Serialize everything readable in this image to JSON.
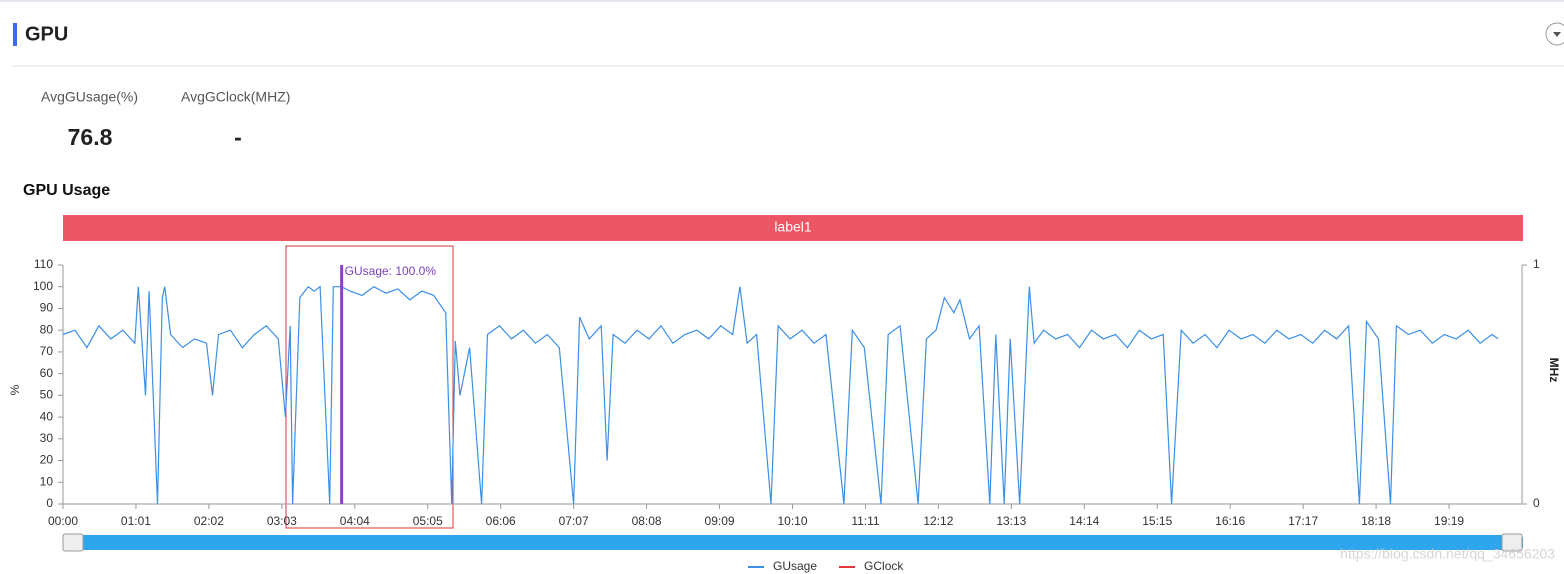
{
  "header": {
    "title": "GPU"
  },
  "stats": [
    {
      "label": "AvgGUsage(%)",
      "value": 76.8
    },
    {
      "label": "AvgGClock(MHZ)",
      "value": "-"
    }
  ],
  "section_title": "GPU Usage",
  "watermark": "https://blog.csdn.net/qq_34656203",
  "chart_data": {
    "type": "line",
    "label_band": "label1",
    "ylabel": "%",
    "y2label": "MHz",
    "annotation": {
      "text": "GUsage: 100.0%",
      "x": 233
    },
    "xlim": [
      0,
      1220
    ],
    "xticks": [
      {
        "value": 0,
        "label": "00:00"
      },
      {
        "value": 61,
        "label": "01:01"
      },
      {
        "value": 122,
        "label": "02:02"
      },
      {
        "value": 183,
        "label": "03:03"
      },
      {
        "value": 244,
        "label": "04:04"
      },
      {
        "value": 305,
        "label": "05:05"
      },
      {
        "value": 366,
        "label": "06:06"
      },
      {
        "value": 427,
        "label": "07:07"
      },
      {
        "value": 488,
        "label": "08:08"
      },
      {
        "value": 549,
        "label": "09:09"
      },
      {
        "value": 610,
        "label": "10:10"
      },
      {
        "value": 671,
        "label": "11:11"
      },
      {
        "value": 732,
        "label": "12:12"
      },
      {
        "value": 793,
        "label": "13:13"
      },
      {
        "value": 854,
        "label": "14:14"
      },
      {
        "value": 915,
        "label": "15:15"
      },
      {
        "value": 976,
        "label": "16:16"
      },
      {
        "value": 1037,
        "label": "17:17"
      },
      {
        "value": 1098,
        "label": "18:18"
      },
      {
        "value": 1159,
        "label": "19:19"
      }
    ],
    "ylim": [
      0,
      110
    ],
    "yticks": [
      0,
      10,
      20,
      30,
      40,
      50,
      60,
      70,
      80,
      90,
      100,
      110
    ],
    "y2lim": [
      0,
      1
    ],
    "y2ticks": [
      0,
      1
    ],
    "x": [
      0,
      10,
      20,
      30,
      40,
      50,
      60,
      63,
      69,
      72,
      79,
      83,
      85,
      90,
      100,
      110,
      120,
      125,
      130,
      140,
      150,
      160,
      170,
      180,
      186,
      190,
      192,
      198,
      205,
      210,
      215,
      223,
      226,
      233,
      240,
      250,
      260,
      270,
      280,
      290,
      300,
      310,
      320,
      325,
      328,
      332,
      340,
      350,
      355,
      365,
      375,
      385,
      395,
      405,
      415,
      427,
      432,
      440,
      450,
      455,
      460,
      470,
      480,
      490,
      500,
      510,
      520,
      530,
      540,
      550,
      560,
      566,
      572,
      580,
      592,
      598,
      608,
      618,
      628,
      638,
      653,
      660,
      670,
      684,
      690,
      700,
      715,
      722,
      730,
      737,
      745,
      750,
      758,
      766,
      775,
      780,
      787,
      792,
      800,
      808,
      812,
      820,
      830,
      840,
      850,
      860,
      870,
      880,
      890,
      900,
      910,
      920,
      927,
      935,
      945,
      955,
      965,
      975,
      985,
      995,
      1005,
      1015,
      1025,
      1035,
      1045,
      1055,
      1065,
      1075,
      1084,
      1090,
      1100,
      1110,
      1115,
      1125,
      1135,
      1145,
      1155,
      1165,
      1175,
      1185,
      1195,
      1200
    ],
    "series": [
      {
        "name": "GUsage",
        "color": "#3b8fe8",
        "values": [
          78,
          80,
          72,
          82,
          76,
          80,
          74,
          100,
          50,
          98,
          0,
          95,
          100,
          78,
          72,
          76,
          74,
          50,
          78,
          80,
          72,
          78,
          82,
          76,
          40,
          82,
          0,
          95,
          100,
          98,
          100,
          0,
          100,
          100,
          98,
          96,
          100,
          97,
          99,
          94,
          98,
          96,
          88,
          0,
          75,
          50,
          72,
          0,
          78,
          82,
          76,
          80,
          74,
          78,
          72,
          0,
          86,
          76,
          82,
          20,
          78,
          74,
          80,
          76,
          82,
          74,
          78,
          80,
          76,
          82,
          78,
          100,
          74,
          78,
          0,
          82,
          76,
          80,
          74,
          78,
          0,
          80,
          72,
          0,
          78,
          82,
          0,
          76,
          80,
          95,
          88,
          94,
          76,
          82,
          0,
          78,
          0,
          76,
          0,
          100,
          74,
          80,
          76,
          78,
          72,
          80,
          76,
          78,
          72,
          80,
          76,
          78,
          0,
          80,
          74,
          78,
          72,
          80,
          76,
          78,
          74,
          80,
          76,
          78,
          74,
          80,
          76,
          82,
          0,
          84,
          76,
          0,
          82,
          78,
          80,
          74,
          78,
          76,
          80,
          74,
          78,
          76
        ]
      },
      {
        "name": "GClock",
        "color": "#e0383c",
        "axis": "y2",
        "values": [
          null,
          null,
          null,
          null,
          null,
          null,
          null,
          null,
          null,
          null,
          null,
          null,
          null,
          null,
          null,
          null,
          null,
          null,
          null,
          null,
          null,
          null,
          null,
          null,
          null,
          null,
          null,
          null,
          null,
          null,
          null,
          null,
          null,
          null,
          null,
          null,
          null,
          null,
          null,
          null,
          null,
          null,
          null,
          null,
          null,
          null,
          null,
          null,
          null,
          null,
          null,
          null,
          null,
          null,
          null,
          null,
          null,
          null,
          null,
          null,
          null,
          null,
          null,
          null,
          null,
          null,
          null,
          null,
          null,
          null,
          null,
          null,
          null,
          null,
          null,
          null,
          null,
          null,
          null,
          null,
          null,
          null,
          null,
          null,
          null,
          null,
          null,
          null,
          null,
          null,
          null,
          null,
          null,
          null,
          null,
          null,
          null,
          null,
          null,
          null,
          null,
          null,
          null,
          null,
          null,
          null,
          null,
          null,
          null,
          null,
          null,
          null,
          null,
          null,
          null,
          null,
          null,
          null,
          null,
          null,
          null,
          null,
          null,
          null,
          null,
          null,
          null,
          null,
          null,
          null,
          null,
          null,
          null,
          null,
          null,
          null,
          null,
          null,
          null,
          null,
          null,
          null
        ]
      }
    ]
  }
}
